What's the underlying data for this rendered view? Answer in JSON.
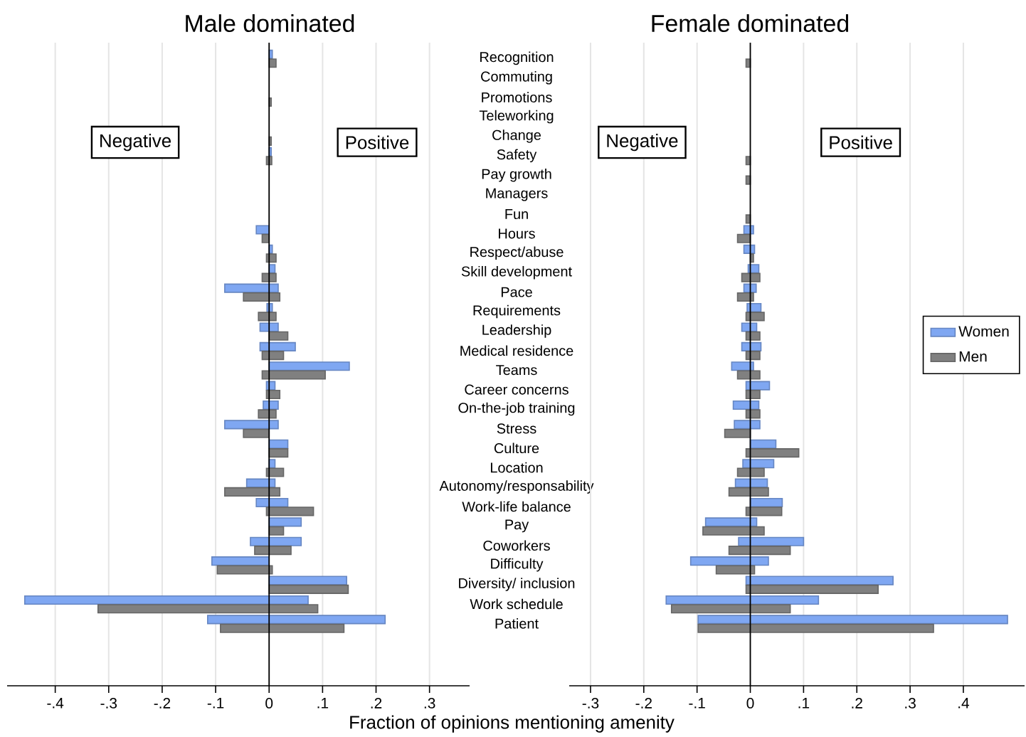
{
  "chart_data": [
    {
      "type": "bar",
      "orientation": "horizontal",
      "title": "Male dominated",
      "xlabel": "Fraction of opinions mentioning amenity",
      "categories": [
        "Recognition",
        "Commuting",
        "Promotions",
        "Teleworking",
        "Change",
        "Safety",
        "Pay growth",
        "Managers",
        "Fun",
        "Hours",
        "Respect/abuse",
        "Skill development",
        "Pace",
        "Requirements",
        "Leadership",
        "Medical residence",
        "Teams",
        "Career concerns",
        "On-the-job training",
        "Stress",
        "Culture",
        "Location",
        "Autonomy/responsability",
        "Work-life balance",
        "Pay",
        "Coworkers",
        "Difficulty",
        "Diversity/ inclusion",
        "Work schedule",
        "Patient"
      ],
      "series": [
        {
          "color": "#7fa7f2",
          "base": [
            0,
            null,
            null,
            null,
            null,
            0,
            null,
            null,
            null,
            -0.024,
            0,
            0,
            -0.083,
            -0.004,
            -0.017,
            -0.017,
            0,
            -0.005,
            -0.011,
            -0.083,
            0,
            0,
            -0.042,
            -0.024,
            0,
            -0.035,
            -0.107,
            0,
            -0.457,
            -0.115
          ],
          "values": [
            0.006,
            null,
            null,
            null,
            null,
            0.004,
            null,
            null,
            null,
            0.024,
            0.006,
            0.011,
            0.1,
            0.01,
            0.034,
            0.066,
            0.15,
            0.016,
            0.028,
            0.1,
            0.035,
            0.011,
            0.053,
            0.059,
            0.06,
            0.095,
            0.107,
            0.145,
            0.53,
            0.332
          ]
        },
        {
          "color": "#808080",
          "base": [
            0,
            null,
            0,
            null,
            0,
            -0.005,
            null,
            null,
            null,
            -0.013,
            -0.005,
            -0.013,
            -0.048,
            -0.02,
            0,
            -0.013,
            -0.013,
            -0.005,
            -0.02,
            -0.048,
            0,
            -0.005,
            -0.083,
            -0.005,
            0,
            -0.027,
            -0.097,
            0,
            -0.32,
            -0.091
          ],
          "values": [
            0.013,
            null,
            0.004,
            null,
            0.004,
            0.01,
            null,
            null,
            null,
            0.013,
            0.018,
            0.026,
            0.068,
            0.033,
            0.035,
            0.04,
            0.118,
            0.025,
            0.033,
            0.048,
            0.035,
            0.032,
            0.103,
            0.088,
            0.027,
            0.068,
            0.103,
            0.148,
            0.411,
            0.231
          ]
        }
      ],
      "xlim": [
        -0.49,
        0.375
      ],
      "xticks": [
        {
          "value": -0.4,
          "label": "-.4"
        },
        {
          "value": -0.3,
          "label": "-.3"
        },
        {
          "value": -0.2,
          "label": "-.2"
        },
        {
          "value": -0.1,
          "label": "-.1"
        },
        0,
        {
          "value": 0.1,
          "label": ".1"
        },
        {
          "value": 0.2,
          "label": ".2"
        },
        {
          "value": 0.3,
          "label": ".3"
        }
      ],
      "grid": "x",
      "ref_lines": [
        {
          "axis": "x",
          "value": 0
        }
      ],
      "annotations": [
        "Negative",
        "Positive"
      ]
    },
    {
      "type": "bar",
      "orientation": "horizontal",
      "title": "Female dominated",
      "series": [
        {
          "name": "Women",
          "color": "#7fa7f2",
          "base": [
            null,
            null,
            null,
            null,
            null,
            null,
            null,
            null,
            null,
            -0.012,
            -0.012,
            -0.004,
            -0.012,
            -0.006,
            -0.016,
            -0.016,
            -0.035,
            -0.008,
            -0.032,
            -0.03,
            0,
            -0.014,
            -0.028,
            0,
            -0.084,
            -0.022,
            -0.112,
            -0.008,
            -0.158,
            -0.098
          ],
          "values": [
            null,
            null,
            null,
            null,
            null,
            null,
            null,
            null,
            null,
            0.018,
            0.02,
            0.02,
            0.023,
            0.026,
            0.028,
            0.036,
            0.041,
            0.044,
            0.048,
            0.048,
            0.048,
            0.058,
            0.06,
            0.06,
            0.096,
            0.122,
            0.146,
            0.276,
            0.286,
            0.581
          ]
        },
        {
          "name": "Men",
          "color": "#808080",
          "base": [
            -0.008,
            null,
            null,
            null,
            null,
            -0.008,
            -0.008,
            null,
            -0.008,
            -0.024,
            0,
            -0.016,
            -0.024,
            -0.008,
            -0.008,
            -0.008,
            -0.024,
            -0.008,
            -0.008,
            -0.048,
            -0.008,
            -0.024,
            -0.04,
            -0.008,
            -0.089,
            -0.04,
            -0.064,
            -0.008,
            -0.148,
            -0.098
          ],
          "values": [
            0.008,
            null,
            null,
            null,
            null,
            0.008,
            0.008,
            null,
            0.008,
            0.024,
            0.006,
            0.034,
            0.03,
            0.034,
            0.026,
            0.026,
            0.042,
            0.026,
            0.026,
            0.048,
            0.099,
            0.05,
            0.074,
            0.067,
            0.115,
            0.115,
            0.072,
            0.248,
            0.223,
            0.442
          ]
        }
      ],
      "xlim": [
        -0.34,
        0.515
      ],
      "xticks": [
        {
          "value": -0.3,
          "label": "-.3"
        },
        {
          "value": -0.2,
          "label": "-.2"
        },
        {
          "value": -0.1,
          "label": "-.1"
        },
        0,
        {
          "value": 0.1,
          "label": ".1"
        },
        {
          "value": 0.2,
          "label": ".2"
        },
        {
          "value": 0.3,
          "label": ".3"
        },
        {
          "value": 0.4,
          "label": ".4"
        }
      ],
      "grid": "x",
      "legend": "right",
      "ref_lines": [
        {
          "axis": "x",
          "value": 0
        }
      ],
      "annotations": [
        "Negative",
        "Positive"
      ]
    }
  ]
}
